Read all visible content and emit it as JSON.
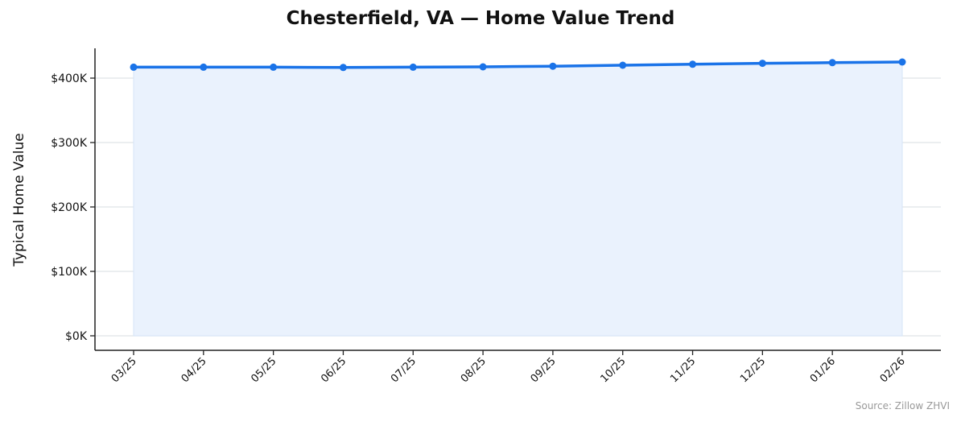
{
  "chart_data": {
    "type": "area",
    "title": "Chesterfield, VA — Home Value Trend",
    "xlabel": "",
    "ylabel": "Typical Home Value",
    "source": "Source: Zillow ZHVI",
    "categories": [
      "03/25",
      "04/25",
      "05/25",
      "06/25",
      "07/25",
      "08/25",
      "09/25",
      "10/25",
      "11/25",
      "12/25",
      "01/26",
      "02/26"
    ],
    "series": [
      {
        "name": "Typical Home Value",
        "values": [
          417000,
          417000,
          417000,
          416500,
          417000,
          417500,
          418500,
          420000,
          421500,
          423000,
          424000,
          425000
        ],
        "color": "#1a73e8"
      }
    ],
    "y_ticks": [
      0,
      100000,
      200000,
      300000,
      400000
    ],
    "y_tick_labels": [
      "$0K",
      "$100K",
      "$200K",
      "$300K",
      "$400K"
    ],
    "ylim": [
      -21000,
      447000
    ],
    "grid": "horizontal",
    "legend": "none",
    "fill_color": "#eaf2fd"
  }
}
